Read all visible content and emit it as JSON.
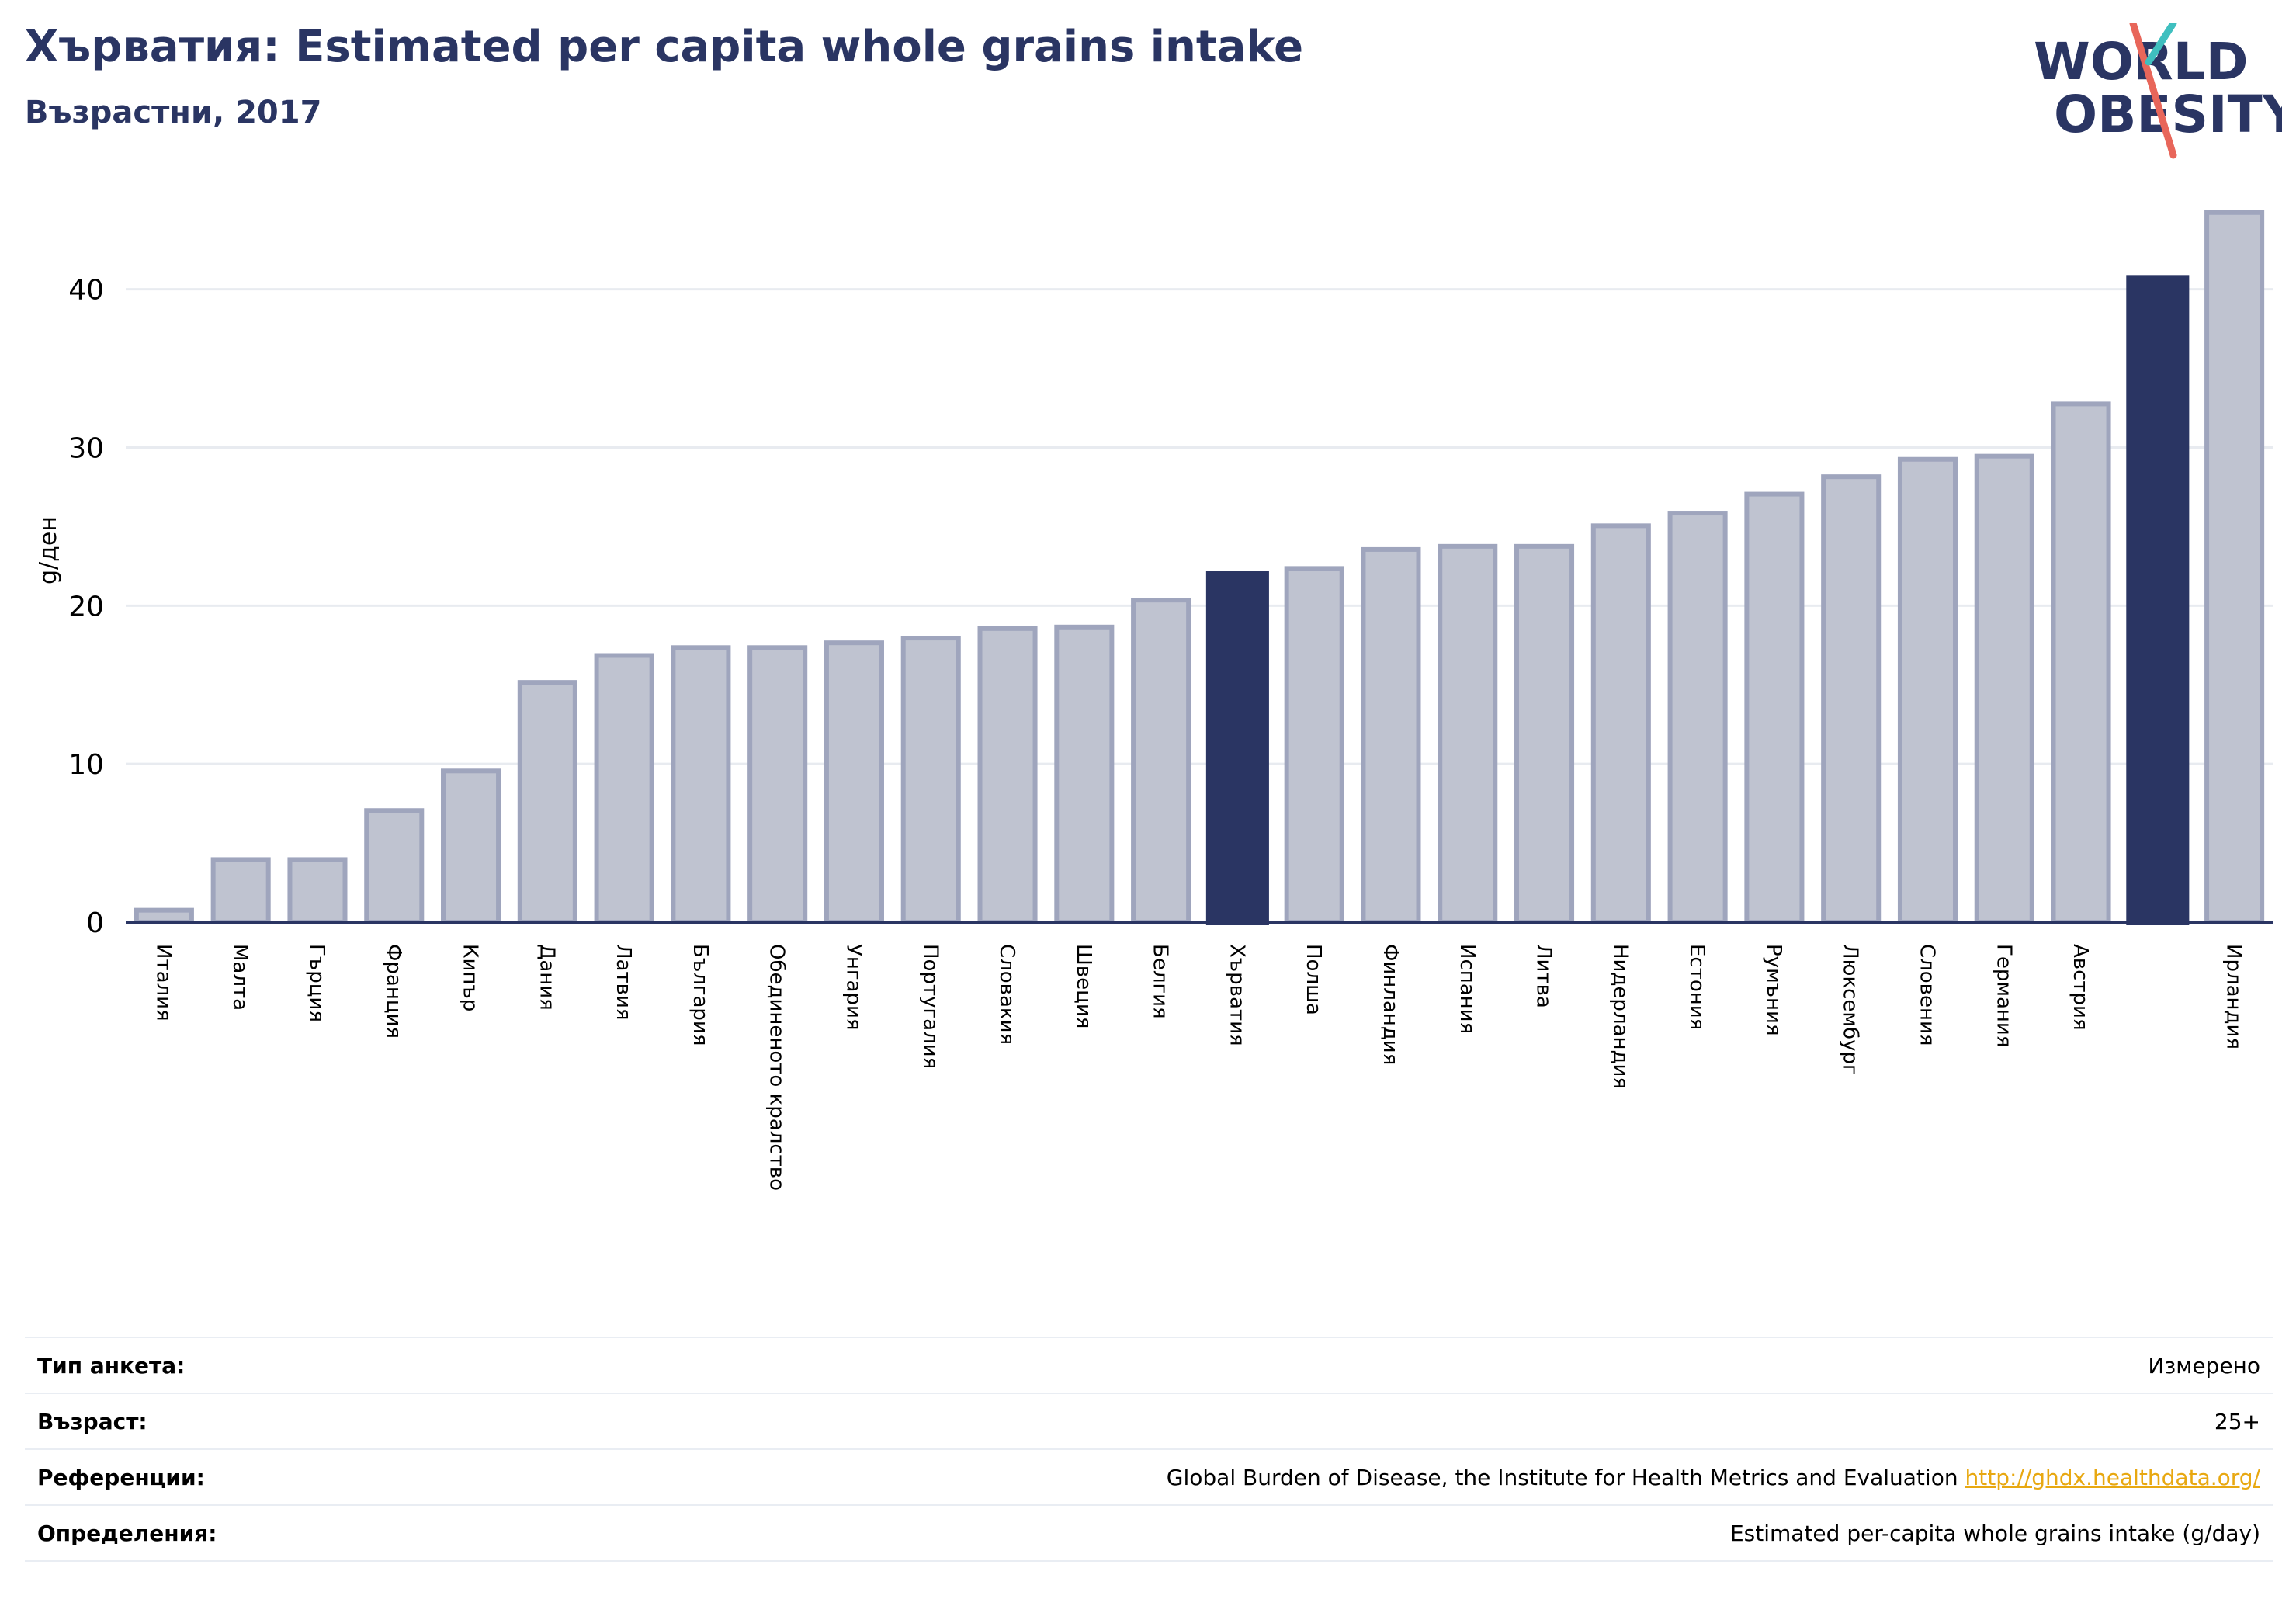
{
  "header": {
    "title": "Хърватия: Estimated per capita whole grains intake",
    "subtitle": "Възрастни, 2017",
    "logo_line1": "WORLD",
    "logo_line2": "OBESITY"
  },
  "chart_data": {
    "type": "bar",
    "ylabel": "g/ден",
    "ylim": [
      0,
      47
    ],
    "yticks": [
      0,
      10,
      20,
      30,
      40
    ],
    "grid": true,
    "categories": [
      "Италия",
      "Малта",
      "Гърция",
      "Франция",
      "Кипър",
      "Дания",
      "Латвия",
      "България",
      "Обединеното кралство",
      "Унгария",
      "Португалия",
      "Словакия",
      "Швеция",
      "Белгия",
      "Хърватия",
      "Полша",
      "Финландия",
      "Испания",
      "Литва",
      "Нидерландия",
      "Естония",
      "Румъния",
      "Люксембург",
      "Словения",
      "Германия",
      "Австрия",
      "",
      "Ирландия"
    ],
    "values": [
      0.9,
      4.1,
      4.1,
      7.2,
      9.7,
      15.3,
      17.0,
      17.5,
      17.5,
      17.8,
      18.1,
      18.7,
      18.8,
      20.5,
      22.2,
      22.5,
      23.7,
      23.9,
      23.9,
      25.2,
      26.0,
      27.2,
      28.3,
      29.4,
      29.6,
      32.9,
      40.9,
      45.0
    ],
    "highlight": [
      14,
      26
    ],
    "colors": {
      "bar": "#bfc3d0",
      "bar_edge": "#9fa5bd",
      "highlight": "#2a3563",
      "axis": "#2a3563",
      "grid": "#e8ebf0"
    }
  },
  "footer": [
    {
      "key": "Тип анкета:",
      "value": "Измерено"
    },
    {
      "key": "Възраст:",
      "value": "25+"
    },
    {
      "key": "Референции:",
      "value": "Global Burden of Disease, the Institute for Health Metrics and Evaluation",
      "link": "http://ghdx.healthdata.org/"
    },
    {
      "key": "Определения:",
      "value": "Estimated per-capita whole grains intake (g/day)"
    }
  ]
}
